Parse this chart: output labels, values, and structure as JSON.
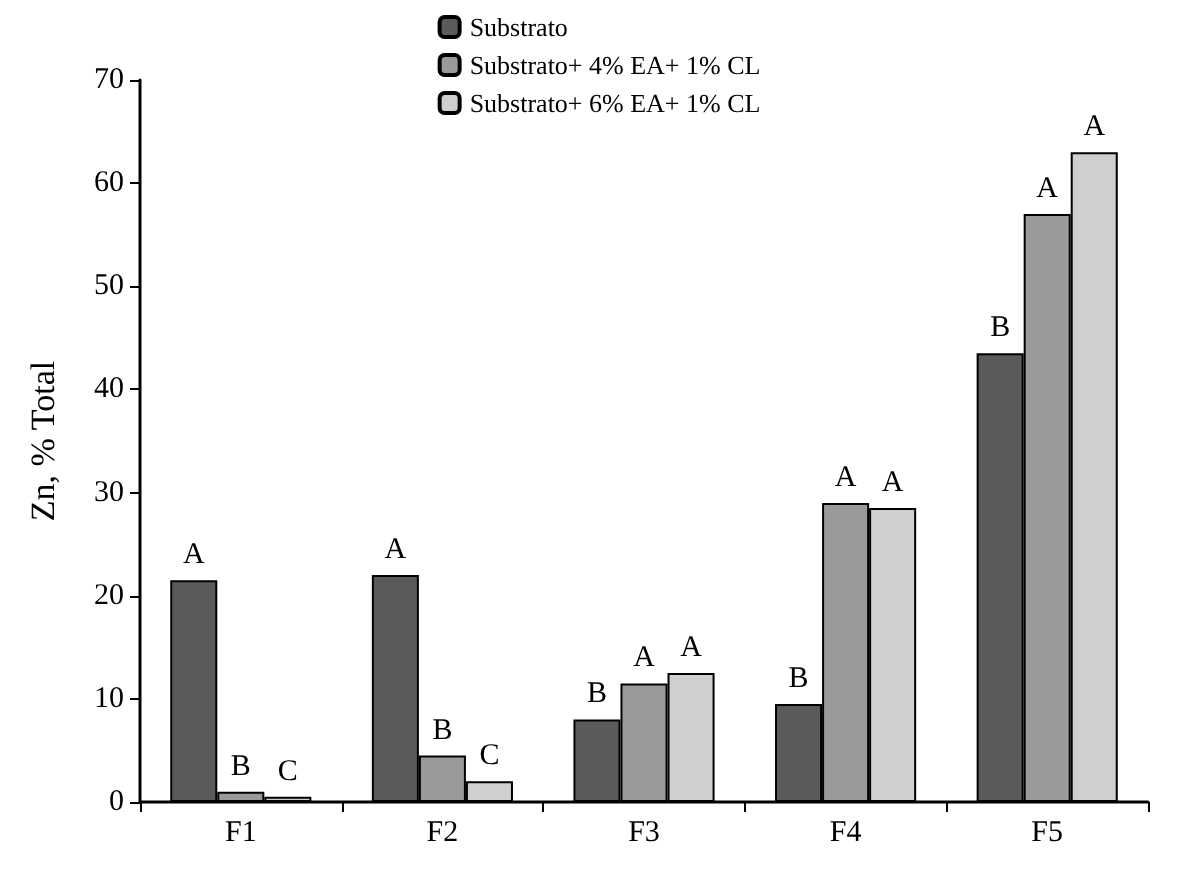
{
  "chart_data": {
    "type": "bar",
    "ylabel": "Zn, % Total",
    "categories": [
      "F1",
      "F2",
      "F3",
      "F4",
      "F5"
    ],
    "series": [
      {
        "name": "Substrato",
        "color": "#5a5a5a",
        "values": [
          21.5,
          22,
          8,
          9.5,
          43.5
        ],
        "value_labels": [
          "A",
          "A",
          "B",
          "B",
          "B"
        ]
      },
      {
        "name": "Substrato+ 4% EA+ 1% CL",
        "color": "#9a9a9a",
        "values": [
          1,
          4.5,
          11.5,
          29,
          57
        ],
        "value_labels": [
          "B",
          "B",
          "A",
          "A",
          "A"
        ]
      },
      {
        "name": "Substrato+ 6% EA+ 1% CL",
        "color": "#cfcfcf",
        "values": [
          0.5,
          2,
          12.5,
          28.5,
          63
        ],
        "value_labels": [
          "C",
          "C",
          "A",
          "A",
          "A"
        ]
      }
    ],
    "ylim": [
      0,
      70
    ],
    "yticks": [
      0,
      10,
      20,
      30,
      40,
      50,
      60,
      70
    ],
    "grid": false,
    "legend": "top"
  }
}
